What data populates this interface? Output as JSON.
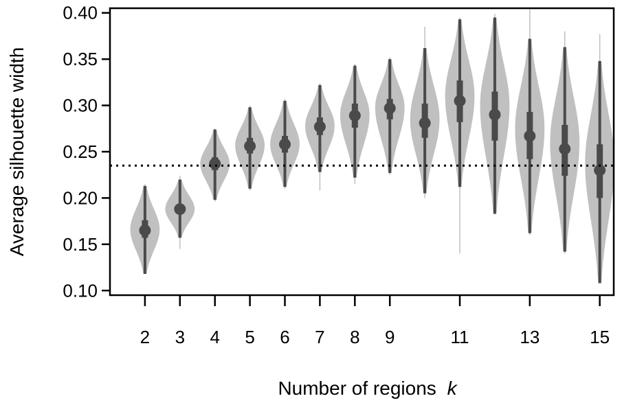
{
  "chart_data": {
    "type": "violin",
    "xlabel": "Number of regions",
    "xlabel_italic_var": "k",
    "ylabel": "Average silhouette width",
    "ylim": [
      0.095,
      0.405
    ],
    "yticks": [
      "0.10",
      "0.15",
      "0.20",
      "0.25",
      "0.30",
      "0.35",
      "0.40"
    ],
    "xlim": [
      1.0,
      15.4
    ],
    "xtick_labels": [
      {
        "k": 2,
        "label": "2"
      },
      {
        "k": 3,
        "label": "3"
      },
      {
        "k": 4,
        "label": "4"
      },
      {
        "k": 5,
        "label": "5"
      },
      {
        "k": 6,
        "label": "6"
      },
      {
        "k": 7,
        "label": "7"
      },
      {
        "k": 8,
        "label": "8"
      },
      {
        "k": 9,
        "label": "9"
      },
      {
        "k": 11,
        "label": "11"
      },
      {
        "k": 13,
        "label": "13"
      },
      {
        "k": 15,
        "label": "15"
      }
    ],
    "reference_line": 0.235,
    "grid": false,
    "colors": {
      "violin": "#c0c0c0",
      "summary": "#4a4a4a",
      "line": "#000000"
    },
    "distributions": [
      {
        "k": 2,
        "median": 0.165,
        "q1": 0.157,
        "q3": 0.176,
        "lo": 0.118,
        "hi": 0.213,
        "tail_lo": 0.118,
        "tail_hi": 0.215,
        "mode": 0.166,
        "halfwidth": 0.42
      },
      {
        "k": 3,
        "median": 0.188,
        "q1": 0.183,
        "q3": 0.193,
        "lo": 0.157,
        "hi": 0.22,
        "tail_lo": 0.145,
        "tail_hi": 0.224,
        "mode": 0.188,
        "halfwidth": 0.42
      },
      {
        "k": 4,
        "median": 0.237,
        "q1": 0.23,
        "q3": 0.244,
        "lo": 0.198,
        "hi": 0.274,
        "tail_lo": 0.196,
        "tail_hi": 0.275,
        "mode": 0.237,
        "halfwidth": 0.42
      },
      {
        "k": 5,
        "median": 0.256,
        "q1": 0.248,
        "q3": 0.265,
        "lo": 0.21,
        "hi": 0.298,
        "tail_lo": 0.208,
        "tail_hi": 0.3,
        "mode": 0.257,
        "halfwidth": 0.42
      },
      {
        "k": 6,
        "median": 0.258,
        "q1": 0.249,
        "q3": 0.267,
        "lo": 0.212,
        "hi": 0.305,
        "tail_lo": 0.21,
        "tail_hi": 0.307,
        "mode": 0.258,
        "halfwidth": 0.42
      },
      {
        "k": 7,
        "median": 0.277,
        "q1": 0.268,
        "q3": 0.287,
        "lo": 0.228,
        "hi": 0.322,
        "tail_lo": 0.208,
        "tail_hi": 0.324,
        "mode": 0.278,
        "halfwidth": 0.42
      },
      {
        "k": 8,
        "median": 0.289,
        "q1": 0.276,
        "q3": 0.302,
        "lo": 0.222,
        "hi": 0.343,
        "tail_lo": 0.215,
        "tail_hi": 0.345,
        "mode": 0.29,
        "halfwidth": 0.42
      },
      {
        "k": 9,
        "median": 0.297,
        "q1": 0.285,
        "q3": 0.307,
        "lo": 0.227,
        "hi": 0.35,
        "tail_lo": 0.225,
        "tail_hi": 0.352,
        "mode": 0.298,
        "halfwidth": 0.42
      },
      {
        "k": 10,
        "median": 0.281,
        "q1": 0.265,
        "q3": 0.302,
        "lo": 0.205,
        "hi": 0.362,
        "tail_lo": 0.2,
        "tail_hi": 0.385,
        "mode": 0.285,
        "halfwidth": 0.42
      },
      {
        "k": 11,
        "median": 0.305,
        "q1": 0.282,
        "q3": 0.327,
        "lo": 0.212,
        "hi": 0.393,
        "tail_lo": 0.14,
        "tail_hi": 0.395,
        "mode": 0.31,
        "halfwidth": 0.42
      },
      {
        "k": 12,
        "median": 0.29,
        "q1": 0.262,
        "q3": 0.315,
        "lo": 0.183,
        "hi": 0.395,
        "tail_lo": 0.182,
        "tail_hi": 0.399,
        "mode": 0.3,
        "halfwidth": 0.42
      },
      {
        "k": 13,
        "median": 0.267,
        "q1": 0.242,
        "q3": 0.293,
        "lo": 0.162,
        "hi": 0.372,
        "tail_lo": 0.16,
        "tail_hi": 0.404,
        "mode": 0.275,
        "halfwidth": 0.42
      },
      {
        "k": 14,
        "median": 0.253,
        "q1": 0.224,
        "q3": 0.279,
        "lo": 0.142,
        "hi": 0.363,
        "tail_lo": 0.14,
        "tail_hi": 0.38,
        "mode": 0.26,
        "halfwidth": 0.42
      },
      {
        "k": 15,
        "median": 0.23,
        "q1": 0.2,
        "q3": 0.258,
        "lo": 0.108,
        "hi": 0.348,
        "tail_lo": 0.108,
        "tail_hi": 0.377,
        "mode": 0.238,
        "halfwidth": 0.42
      }
    ]
  }
}
